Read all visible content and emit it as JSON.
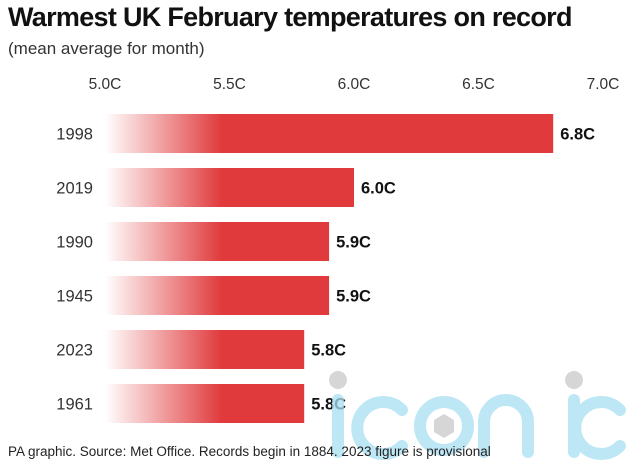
{
  "title": "Warmest UK February temperatures on record",
  "subtitle": "(mean average for month)",
  "source": "PA graphic. Source: Met Office. Records begin in 1884. 2023 figure is provisional",
  "watermark": "iconic",
  "colors": {
    "bar": "#e03a3c",
    "text": "#222222"
  },
  "chart_data": {
    "type": "bar",
    "orientation": "horizontal",
    "title": "Warmest UK February temperatures on record",
    "subtitle": "(mean average for month)",
    "xlabel": "",
    "ylabel": "",
    "xlim": [
      5.0,
      7.0
    ],
    "x_ticks": [
      5.0,
      5.5,
      6.0,
      6.5,
      7.0
    ],
    "x_tick_labels": [
      "5.0C",
      "5.5C",
      "6.0C",
      "6.5C",
      "7.0C"
    ],
    "x_axis_position": "top",
    "grid": false,
    "categories": [
      "1998",
      "2019",
      "1990",
      "1945",
      "2023",
      "1961"
    ],
    "values": [
      6.8,
      6.0,
      5.9,
      5.9,
      5.8,
      5.8
    ],
    "value_labels": [
      "6.8C",
      "6.0C",
      "5.9C",
      "5.9C",
      "5.8C",
      "5.8C"
    ],
    "unit": "C"
  }
}
